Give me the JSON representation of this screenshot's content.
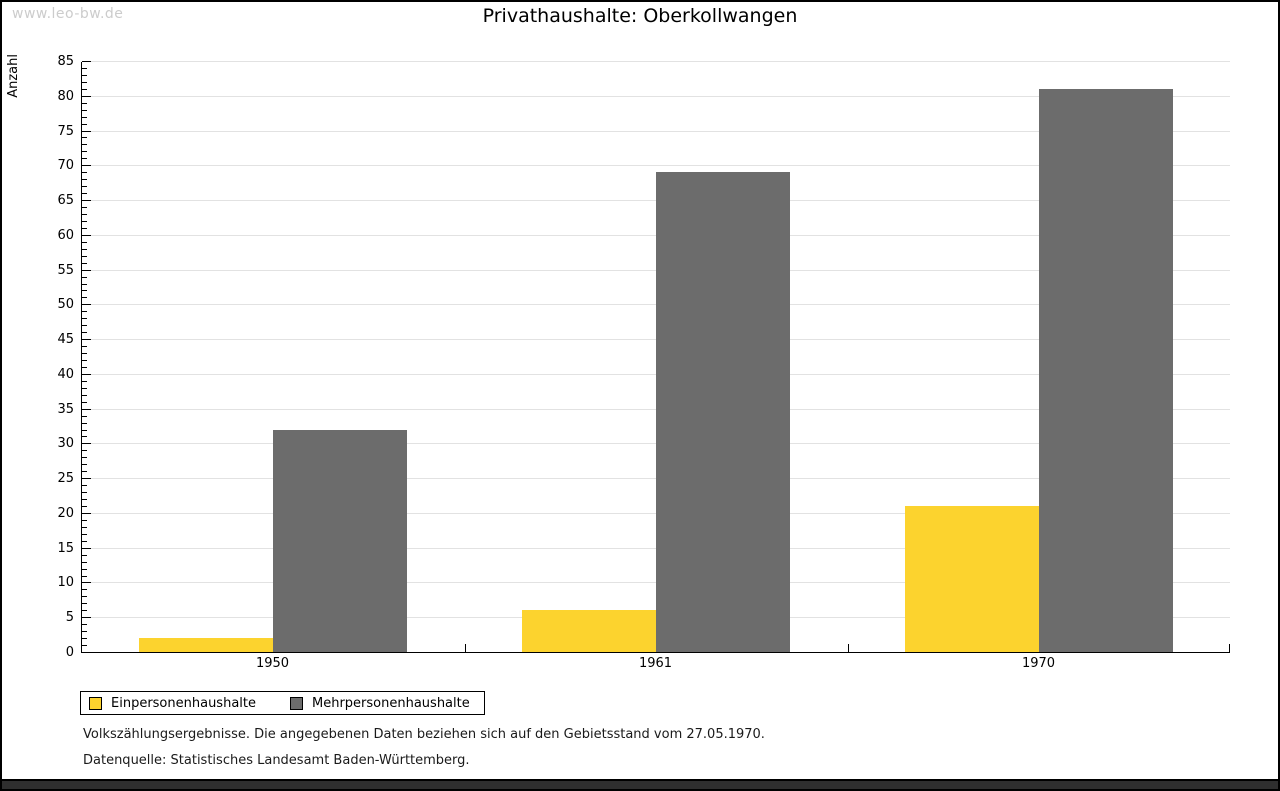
{
  "watermark": "www.leo-bw.de",
  "title": "Privathaushalte: Oberkollwangen",
  "chart_data": {
    "type": "bar",
    "title": "Privathaushalte: Oberkollwangen",
    "ylabel": "Anzahl",
    "xlabel": "",
    "categories": [
      "1950",
      "1961",
      "1970"
    ],
    "series": [
      {
        "name": "Einpersonenhaushalte",
        "color": "#FCD32E",
        "values": [
          2,
          6,
          21
        ]
      },
      {
        "name": "Mehrpersonenhaushalte",
        "color": "#6C6C6C",
        "values": [
          32,
          69,
          81
        ]
      }
    ],
    "ylim": [
      0,
      85
    ],
    "ytick_step": 5,
    "minor_tick_step": 1,
    "grid": true,
    "legend_position": "bottom-left"
  },
  "colors": {
    "gridline": "#e2e2e2",
    "watermark_text": "#cccccc",
    "bottom_bar": "#2f2f2f"
  },
  "footer": {
    "line1": "Volkszählungsergebnisse. Die angegebenen Daten beziehen sich auf den Gebietsstand vom 27.05.1970.",
    "line2": "Datenquelle: Statistisches Landesamt Baden-Württemberg."
  }
}
